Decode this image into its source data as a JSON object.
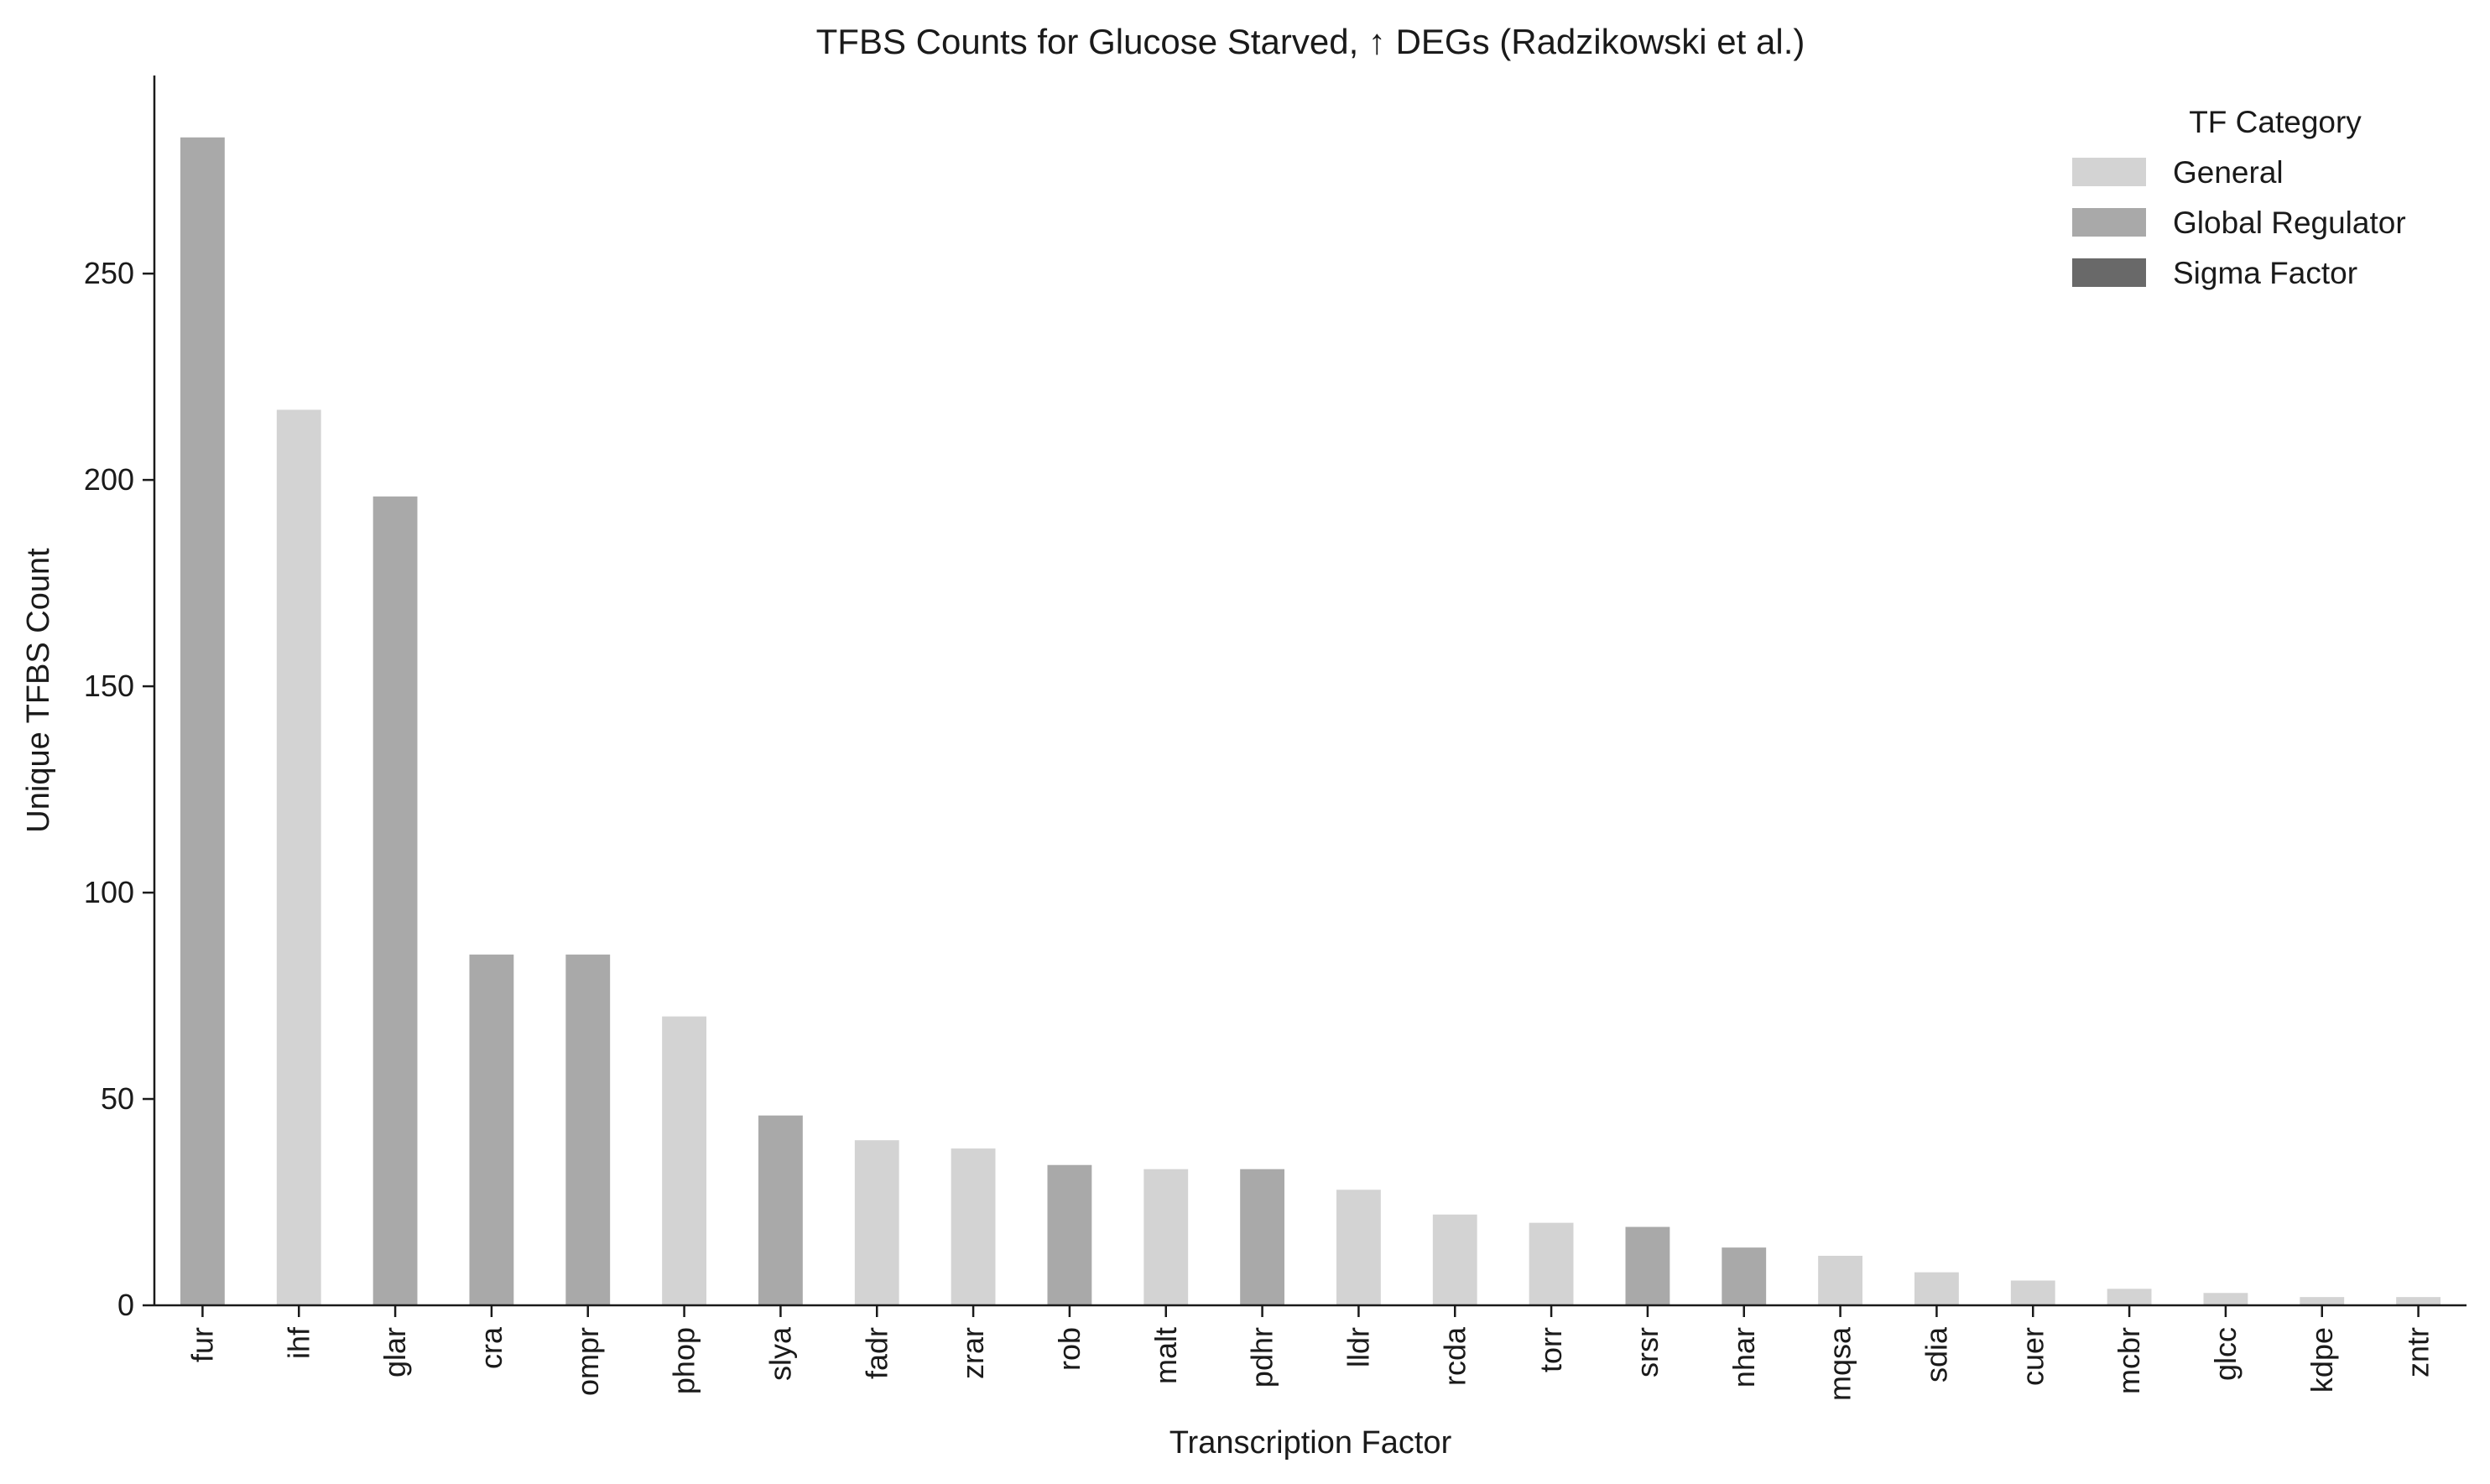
{
  "chart_data": {
    "type": "bar",
    "title": "TFBS Counts for Glucose Starved, ↑ DEGs (Radzikowski et al.)",
    "xlabel": "Transcription Factor",
    "ylabel": "Unique TFBS Count",
    "ylim": [
      0,
      298
    ],
    "yticks": [
      0,
      50,
      100,
      150,
      200,
      250
    ],
    "grid": false,
    "legend": {
      "title": "TF Category",
      "placement": "top-right",
      "entries": [
        {
          "label": "General",
          "color": "#d3d3d3"
        },
        {
          "label": "Global Regulator",
          "color": "#a9a9a9"
        },
        {
          "label": "Sigma Factor",
          "color": "#696969"
        }
      ]
    },
    "categories": [
      "fur",
      "ihf",
      "glar",
      "cra",
      "ompr",
      "phop",
      "slya",
      "fadr",
      "zrar",
      "rob",
      "malt",
      "pdhr",
      "lldr",
      "rcda",
      "torr",
      "srsr",
      "nhar",
      "mqsa",
      "sdia",
      "cuer",
      "mcbr",
      "glcc",
      "kdpe",
      "zntr"
    ],
    "values": [
      283,
      217,
      196,
      85,
      85,
      70,
      46,
      40,
      38,
      34,
      33,
      33,
      28,
      22,
      20,
      19,
      14,
      12,
      8,
      6,
      4,
      3,
      2,
      2
    ],
    "bar_category": [
      "Global Regulator",
      "General",
      "Global Regulator",
      "Global Regulator",
      "Global Regulator",
      "General",
      "Global Regulator",
      "General",
      "General",
      "Global Regulator",
      "General",
      "Global Regulator",
      "General",
      "General",
      "General",
      "Global Regulator",
      "Global Regulator",
      "General",
      "General",
      "General",
      "General",
      "General",
      "General",
      "General"
    ]
  }
}
